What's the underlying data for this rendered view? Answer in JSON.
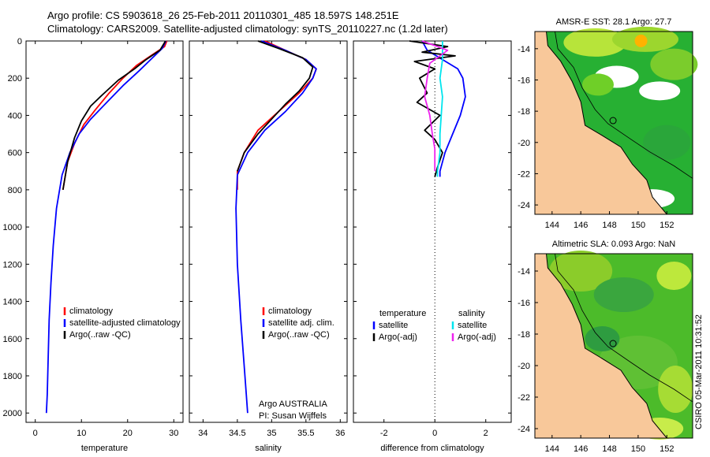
{
  "header": {
    "line1": "Argo profile: CS 5903618_26 25-Feb-2011 20110301_485 18.597S 148.251E",
    "line2": "Climatology: CARS2009. Satellite-adjusted climatology: synTS_20110227.nc (1.2d later)"
  },
  "side_label": "CSIRO 05-Mar-2011 10:31:52",
  "colors": {
    "climatology": "#ff0000",
    "satellite": "#0000ff",
    "argo": "#000000",
    "sat_diff_salinity": "#00e5ee",
    "argo_diff_salinity": "#ee22ee",
    "land": "#f8c89a"
  },
  "chart_data": [
    {
      "type": "line",
      "panel": "temperature",
      "xlabel": "temperature",
      "xlim": [
        -2,
        32
      ],
      "xticks": [
        0,
        10,
        20,
        30
      ],
      "ylim": [
        0,
        2050
      ],
      "yticks": [
        0,
        200,
        400,
        600,
        800,
        1000,
        1200,
        1400,
        1600,
        1800,
        2000
      ],
      "y_reversed": true,
      "legend": [
        "climatology",
        "satellite-adjusted climatology",
        "Argo(..raw -QC)"
      ],
      "series": [
        {
          "name": "climatology",
          "color": "#ff0000",
          "x": [
            28.5,
            28,
            25,
            22,
            19,
            16,
            13,
            10.5,
            8.5,
            7,
            6
          ],
          "y": [
            0,
            30,
            80,
            130,
            200,
            280,
            370,
            450,
            550,
            650,
            800
          ]
        },
        {
          "name": "satellite-adjusted climatology",
          "color": "#0000ff",
          "x": [
            28.3,
            27.5,
            25,
            22.5,
            19,
            15.5,
            12,
            9.5,
            7.5,
            5.8,
            4.6,
            3.9,
            3.4,
            3,
            2.8,
            2.6,
            2.4
          ],
          "y": [
            0,
            40,
            100,
            160,
            240,
            330,
            420,
            500,
            600,
            720,
            900,
            1100,
            1300,
            1500,
            1700,
            1900,
            2000
          ]
        },
        {
          "name": "Argo(..raw -QC)",
          "color": "#000000",
          "x": [
            28.2,
            27,
            24,
            21.5,
            18,
            14.5,
            12,
            10,
            8.5,
            7,
            6
          ],
          "y": [
            0,
            50,
            100,
            150,
            210,
            290,
            350,
            430,
            520,
            650,
            800
          ]
        }
      ]
    },
    {
      "type": "line",
      "panel": "salinity",
      "xlabel": "salinity",
      "xlim": [
        33.8,
        36.1
      ],
      "xticks": [
        34,
        34.5,
        35,
        35.5,
        36
      ],
      "ylim": [
        0,
        2050
      ],
      "y_reversed": true,
      "legend": [
        "climatology",
        "satellite adj. clim.",
        "Argo(..raw -QC)"
      ],
      "annotation": [
        "Argo AUSTRALIA",
        "PI: Susan Wijffels"
      ],
      "series": [
        {
          "name": "climatology",
          "color": "#ff0000",
          "x": [
            34.9,
            35.2,
            35.5,
            35.65,
            35.6,
            35.4,
            35.1,
            34.8,
            34.6,
            34.5,
            34.5
          ],
          "y": [
            0,
            50,
            100,
            150,
            200,
            280,
            380,
            480,
            600,
            700,
            800
          ]
        },
        {
          "name": "satellite adj. clim.",
          "color": "#0000ff",
          "x": [
            34.85,
            35.2,
            35.5,
            35.65,
            35.6,
            35.45,
            35.2,
            34.9,
            34.65,
            34.5,
            34.48,
            34.5,
            34.55,
            34.6,
            34.63,
            34.65
          ],
          "y": [
            0,
            50,
            100,
            150,
            200,
            280,
            380,
            480,
            600,
            720,
            900,
            1200,
            1500,
            1750,
            1900,
            2000
          ]
        },
        {
          "name": "Argo(..raw -QC)",
          "color": "#000000",
          "x": [
            34.8,
            35.1,
            35.45,
            35.6,
            35.55,
            35.4,
            35.2,
            35,
            34.8,
            34.6,
            34.5
          ],
          "y": [
            0,
            40,
            90,
            140,
            200,
            270,
            340,
            420,
            500,
            600,
            700
          ]
        }
      ]
    },
    {
      "type": "line",
      "panel": "difference",
      "xlabel": "difference from climatology",
      "xlim": [
        -3.2,
        3
      ],
      "xticks": [
        -2,
        0,
        2
      ],
      "ylim": [
        0,
        2050
      ],
      "y_reversed": true,
      "legend_headers": [
        "temperature",
        "salinity"
      ],
      "legend": [
        "satellite",
        "Argo(-adj)",
        "satellite",
        "Argo(-adj)"
      ],
      "series": [
        {
          "name": "temperature satellite",
          "color": "#0000ff",
          "x": [
            -0.5,
            -0.3,
            0.3,
            0.9,
            1.1,
            1.2,
            1.0,
            0.7,
            0.4,
            0.2,
            0.2
          ],
          "y": [
            0,
            50,
            100,
            150,
            200,
            300,
            400,
            500,
            600,
            700,
            730
          ]
        },
        {
          "name": "temperature Argo(-adj)",
          "color": "#000000",
          "x": [
            -1,
            0.5,
            -0.5,
            0.8,
            -0.8,
            0,
            -0.6,
            -0.3,
            -0.7,
            0.2,
            -0.4,
            0,
            0.3,
            0.1,
            0
          ],
          "y": [
            0,
            30,
            60,
            80,
            110,
            150,
            200,
            280,
            330,
            400,
            480,
            530,
            600,
            680,
            730
          ]
        },
        {
          "name": "salinity satellite",
          "color": "#00e5ee",
          "x": [
            0.3,
            0.3,
            0.2,
            0.3,
            0.25,
            0.2,
            0.2,
            0.15,
            0.1,
            0.1
          ],
          "y": [
            0,
            100,
            200,
            300,
            400,
            500,
            600,
            650,
            700,
            730
          ]
        },
        {
          "name": "salinity Argo(-adj)",
          "color": "#ee22ee",
          "x": [
            -0.5,
            0.5,
            -0.2,
            -0.3,
            -0.4,
            -0.2,
            -0.1,
            0,
            0,
            0
          ],
          "y": [
            0,
            50,
            120,
            200,
            300,
            400,
            500,
            580,
            650,
            700
          ]
        }
      ]
    },
    {
      "type": "heatmap",
      "panel": "sst_map",
      "title": "AMSR-E SST: 28.1 Argo: 27.7",
      "x_ticks": [
        144,
        146,
        148,
        150,
        152
      ],
      "y_ticks": [
        -14,
        -16,
        -18,
        -20,
        -22,
        -24
      ],
      "xlim": [
        142.8,
        153.8
      ],
      "ylim": [
        -24.6,
        -12.9
      ]
    },
    {
      "type": "heatmap",
      "panel": "sla_map",
      "title": "Altimetric SLA: 0.093 Argo: NaN",
      "x_ticks": [
        144,
        146,
        148,
        150,
        152
      ],
      "y_ticks": [
        -14,
        -16,
        -18,
        -20,
        -22,
        -24
      ],
      "xlim": [
        142.8,
        153.8
      ],
      "ylim": [
        -24.6,
        -12.9
      ]
    }
  ]
}
